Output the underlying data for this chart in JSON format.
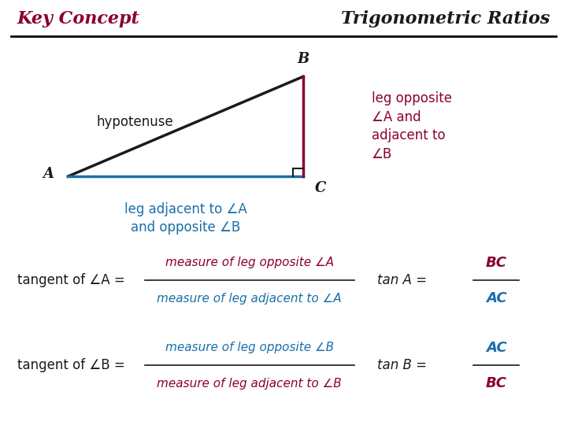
{
  "title_left": "Key Concept",
  "title_right": "Trigonometric Ratios",
  "title_left_color": "#8B0033",
  "title_right_color": "#1a1a1a",
  "bg_color": "#ffffff",
  "triangle": {
    "A": [
      0.12,
      0.585
    ],
    "B": [
      0.535,
      0.82
    ],
    "C": [
      0.535,
      0.585
    ]
  },
  "hyp_color": "#1a1a1a",
  "leg_ac_color": "#1a6fa8",
  "leg_bc_color": "#8B0033",
  "label_A": "A",
  "label_B": "B",
  "label_C": "C",
  "label_hyp": "hypotenuse",
  "label_adj": "leg adjacent to ∠A\nand opposite ∠B",
  "label_opp": "leg opposite\n∠A and\nadjacent to\n∠B",
  "tan_A_left_black": "tangent of ∠A =",
  "tan_A_num": "measure of leg opposite ∠A",
  "tan_A_den": "measure of leg adjacent to ∠A",
  "tan_A_right_black": "tan A =",
  "tan_A_num_right": "BC",
  "tan_A_den_right": "AC",
  "tan_B_left_black": "tangent of ∠B =",
  "tan_B_num": "measure of leg opposite ∠B",
  "tan_B_den": "measure of leg adjacent to ∠B",
  "tan_B_right_black": "tan B =",
  "tan_B_num_right": "AC",
  "tan_B_den_right": "BC",
  "crimson": "#8B0033",
  "blue": "#1a6fa8",
  "black": "#1a1a1a"
}
